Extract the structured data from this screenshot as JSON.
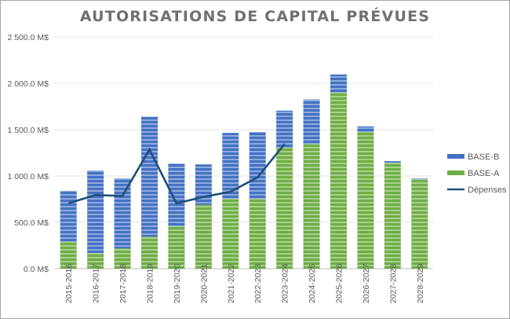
{
  "chart_data": {
    "type": "bar",
    "stacked": true,
    "title": "AUTORISATIONS DE CAPITAL PRÉVUES",
    "xlabel": "",
    "ylabel": "",
    "ylim": [
      0,
      2500
    ],
    "yticks": [
      0,
      500,
      1000,
      1500,
      2000,
      2500
    ],
    "ytick_labels": [
      "0.0 M$",
      "500.0 M$",
      "1 000.0 M$",
      "1 500.0 M$",
      "2 000.0 M$",
      "2 500.0 M$"
    ],
    "grid": true,
    "legend_position": "right",
    "categories": [
      "2015-2016",
      "2016-2017",
      "2017-2018",
      "2018-2019",
      "2019-2020",
      "2020-2021",
      "2021-2022",
      "2022-2023",
      "2023-2024",
      "2024-2025",
      "2025-2026",
      "2026-2027",
      "2027-2028",
      "2028-2029"
    ],
    "series": [
      {
        "name": "BASE-A",
        "type": "bar",
        "color": "#70ad47",
        "values": [
          290,
          170,
          220,
          345,
          460,
          690,
          755,
          755,
          1305,
          1345,
          1900,
          1475,
          1145,
          965
        ]
      },
      {
        "name": "BASE-B",
        "type": "bar",
        "color": "#4472c4",
        "values": [
          550,
          890,
          755,
          1295,
          675,
          435,
          710,
          720,
          400,
          480,
          195,
          60,
          15,
          10
        ]
      },
      {
        "name": "Dépenses",
        "type": "line",
        "color": "#1f4e79",
        "values": [
          705,
          795,
          785,
          1285,
          705,
          775,
          830,
          985,
          1345,
          null,
          null,
          null,
          null,
          null
        ]
      }
    ]
  },
  "legend": {
    "items": [
      {
        "label": "BASE-B",
        "color": "#4472c4",
        "kind": "bar"
      },
      {
        "label": "BASE-A",
        "color": "#70ad47",
        "kind": "bar"
      },
      {
        "label": "Dépenses",
        "color": "#1f4e79",
        "kind": "line"
      }
    ]
  }
}
